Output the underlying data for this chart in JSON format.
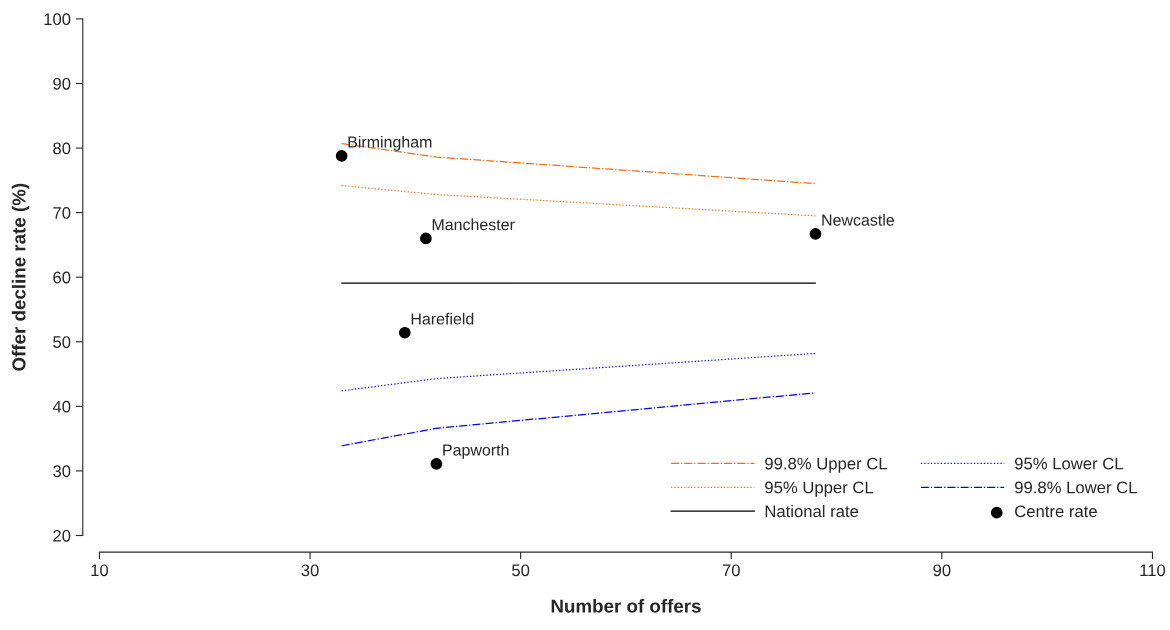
{
  "chart_data": {
    "type": "line",
    "xlabel": "Number of offers",
    "ylabel": "Offer decline rate (%)",
    "xlim": [
      10,
      110
    ],
    "ylim": [
      20,
      100
    ],
    "xticks": [
      10,
      30,
      50,
      70,
      90,
      110
    ],
    "yticks": [
      20,
      30,
      40,
      50,
      60,
      70,
      80,
      90,
      100
    ],
    "grid": false,
    "legend": "bottom right",
    "series": [
      {
        "name": "99.8% Upper CL",
        "color": "#ff6a13",
        "line_style": "dashdot",
        "marker": "none",
        "x": [
          33,
          42,
          78
        ],
        "values": [
          80.7,
          78.6,
          74.5
        ]
      },
      {
        "name": "95% Upper CL",
        "color": "#ff6a13",
        "line_style": "dotted",
        "marker": "none",
        "x": [
          33,
          42,
          78
        ],
        "values": [
          74.2,
          72.8,
          69.5
        ]
      },
      {
        "name": "National rate",
        "color": "#000000",
        "line_style": "solid",
        "marker": "none",
        "x": [
          33,
          78
        ],
        "values": [
          59.1,
          59.1
        ]
      },
      {
        "name": "95% Lower CL",
        "color": "#0000ff",
        "line_style": "dotted",
        "marker": "none",
        "x": [
          33,
          42,
          78
        ],
        "values": [
          42.4,
          44.3,
          48.2
        ]
      },
      {
        "name": "99.8% Lower CL",
        "color": "#0000ff",
        "line_style": "dashdot",
        "marker": "none",
        "x": [
          33,
          42,
          78
        ],
        "values": [
          33.9,
          36.6,
          42.1
        ]
      },
      {
        "name": "Centre rate",
        "type": "scatter",
        "color": "#000000",
        "marker": "circle",
        "x": [
          33,
          41,
          78,
          39,
          42
        ],
        "values": [
          78.8,
          66.0,
          66.7,
          51.4,
          31.1
        ]
      }
    ],
    "annotations": [
      {
        "text": "Birmingham",
        "x": 33,
        "y": 78.8
      },
      {
        "text": "Manchester",
        "x": 41,
        "y": 66.0
      },
      {
        "text": "Newcastle",
        "x": 78,
        "y": 66.7
      },
      {
        "text": "Harefield",
        "x": 39,
        "y": 51.4
      },
      {
        "text": "Papworth",
        "x": 42,
        "y": 31.1
      }
    ]
  }
}
